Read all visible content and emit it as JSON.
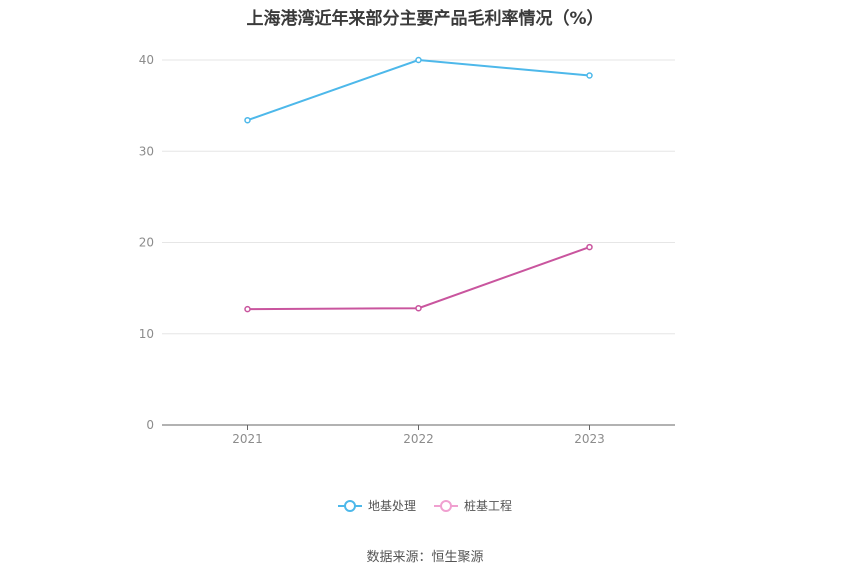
{
  "chart_data": {
    "type": "line",
    "title": "上海港湾近年来部分主要产品毛利率情况（%）",
    "categories": [
      "2021",
      "2022",
      "2023"
    ],
    "series": [
      {
        "name": "地基处理",
        "values": [
          33.4,
          40.0,
          38.3
        ],
        "color": "#4db8ea"
      },
      {
        "name": "桩基工程",
        "values": [
          12.7,
          12.8,
          19.5
        ],
        "color": "#c9559e"
      }
    ],
    "xlabel": "",
    "ylabel": "",
    "ylim": [
      0,
      40
    ],
    "yticks": [
      "0",
      "10",
      "20",
      "30",
      "40"
    ],
    "grid": true,
    "legend_position": "bottom-center",
    "legend_marker_colors": [
      "#4db8ea",
      "#f0a0d0"
    ]
  },
  "footer": {
    "source": "数据来源：恒生聚源"
  }
}
